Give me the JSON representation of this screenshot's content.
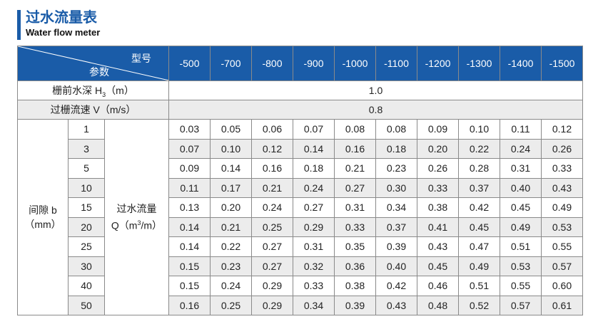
{
  "title": {
    "cn": "过水流量表",
    "en": "Water flow meter"
  },
  "table": {
    "corner_model": "型号",
    "corner_param": "参数",
    "models": [
      "-500",
      "-700",
      "-800",
      "-900",
      "-1000",
      "-1100",
      "-1200",
      "-1300",
      "-1400",
      "-1500"
    ],
    "depth": {
      "label_pre": "栅前水深 H",
      "label_sub": "3",
      "label_post": "（m）",
      "value": "1.0"
    },
    "speed": {
      "label": "过栅流速 V（m/s）",
      "value": "0.8"
    },
    "gap_label": "间隙 b",
    "gap_unit": "（mm）",
    "flow_label": "过水流量",
    "flow_unit_pre": "Q（m",
    "flow_unit_sup": "3",
    "flow_unit_post": "/m）",
    "rows": [
      {
        "gap": "1",
        "values": [
          "0.03",
          "0.05",
          "0.06",
          "0.07",
          "0.08",
          "0.08",
          "0.09",
          "0.10",
          "0.11",
          "0.12"
        ]
      },
      {
        "gap": "3",
        "values": [
          "0.07",
          "0.10",
          "0.12",
          "0.14",
          "0.16",
          "0.18",
          "0.20",
          "0.22",
          "0.24",
          "0.26"
        ]
      },
      {
        "gap": "5",
        "values": [
          "0.09",
          "0.14",
          "0.16",
          "0.18",
          "0.21",
          "0.23",
          "0.26",
          "0.28",
          "0.31",
          "0.33"
        ]
      },
      {
        "gap": "10",
        "values": [
          "0.11",
          "0.17",
          "0.21",
          "0.24",
          "0.27",
          "0.30",
          "0.33",
          "0.37",
          "0.40",
          "0.43"
        ]
      },
      {
        "gap": "15",
        "values": [
          "0.13",
          "0.20",
          "0.24",
          "0.27",
          "0.31",
          "0.34",
          "0.38",
          "0.42",
          "0.45",
          "0.49"
        ]
      },
      {
        "gap": "20",
        "values": [
          "0.14",
          "0.21",
          "0.25",
          "0.29",
          "0.33",
          "0.37",
          "0.41",
          "0.45",
          "0.49",
          "0.53"
        ]
      },
      {
        "gap": "25",
        "values": [
          "0.14",
          "0.22",
          "0.27",
          "0.31",
          "0.35",
          "0.39",
          "0.43",
          "0.47",
          "0.51",
          "0.55"
        ]
      },
      {
        "gap": "30",
        "values": [
          "0.15",
          "0.23",
          "0.27",
          "0.32",
          "0.36",
          "0.40",
          "0.45",
          "0.49",
          "0.53",
          "0.57"
        ]
      },
      {
        "gap": "40",
        "values": [
          "0.15",
          "0.24",
          "0.29",
          "0.33",
          "0.38",
          "0.42",
          "0.46",
          "0.51",
          "0.55",
          "0.60"
        ]
      },
      {
        "gap": "50",
        "values": [
          "0.16",
          "0.25",
          "0.29",
          "0.34",
          "0.39",
          "0.43",
          "0.48",
          "0.52",
          "0.57",
          "0.61"
        ]
      }
    ],
    "colors": {
      "header_bg": "#1a5ca8",
      "shade": "#ececec",
      "border": "#8a8a8a"
    }
  }
}
